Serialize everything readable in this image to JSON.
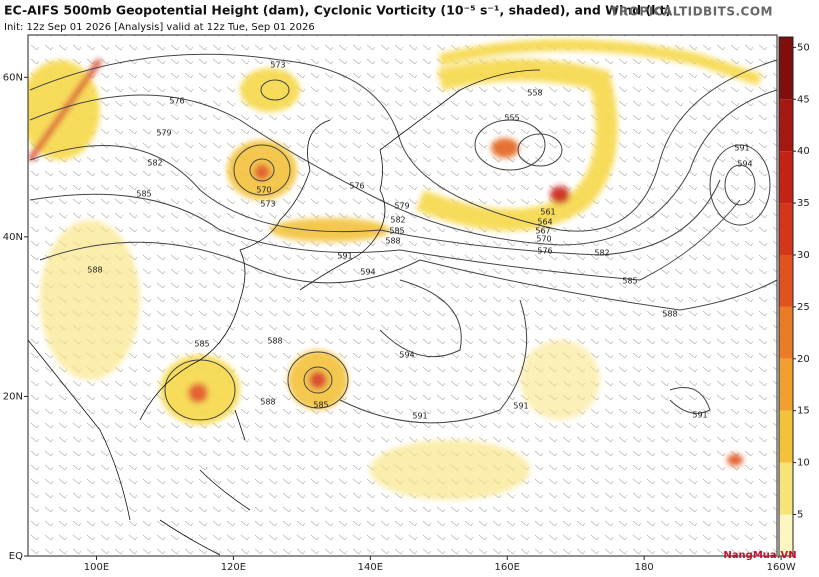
{
  "header": {
    "title": "EC-AIFS 500mb Geopotential Height (dam), Cyclonic Vorticity (10⁻⁵ s⁻¹, shaded), and Wind (kt)",
    "init": "Init: 12z Sep 01 2026   [Analysis]   valid at 12z Tue, Sep 01 2026",
    "site": "TROPICALTIDBITS.COM"
  },
  "axes": {
    "xlim": [
      90,
      199.4
    ],
    "ylim": [
      0,
      65.3
    ],
    "xticks": [
      {
        "value": 100,
        "label": "100E"
      },
      {
        "value": 120,
        "label": "120E"
      },
      {
        "value": 140,
        "label": "140E"
      },
      {
        "value": 160,
        "label": "160E"
      },
      180,
      {
        "value": 200,
        "label": "160W"
      }
    ],
    "yticks": [
      {
        "value": 0,
        "label": "EQ"
      },
      {
        "value": 20,
        "label": "20N"
      },
      {
        "value": 40,
        "label": "40N"
      },
      {
        "value": 60,
        "label": "60N"
      }
    ]
  },
  "colorbar": {
    "range": [
      1,
      51
    ],
    "ticks": [
      5,
      10,
      15,
      20,
      25,
      30,
      35,
      40,
      45,
      50
    ],
    "colors": [
      "#fdf6c0",
      "#f8e27a",
      "#f3c23a",
      "#f0a02e",
      "#eb7c26",
      "#e0531f",
      "#d4361a",
      "#c32216",
      "#a51812",
      "#7f0f0d"
    ]
  },
  "contours": {
    "labels": [
      573,
      576,
      579,
      582,
      585,
      570,
      573,
      576,
      579,
      582,
      585,
      588,
      591,
      594,
      588,
      585,
      588,
      588,
      585,
      594,
      591,
      591,
      591,
      558,
      555,
      561,
      564,
      567,
      570,
      576,
      582,
      585,
      588,
      591,
      594
    ]
  },
  "watermark": "NangMua.VN"
}
